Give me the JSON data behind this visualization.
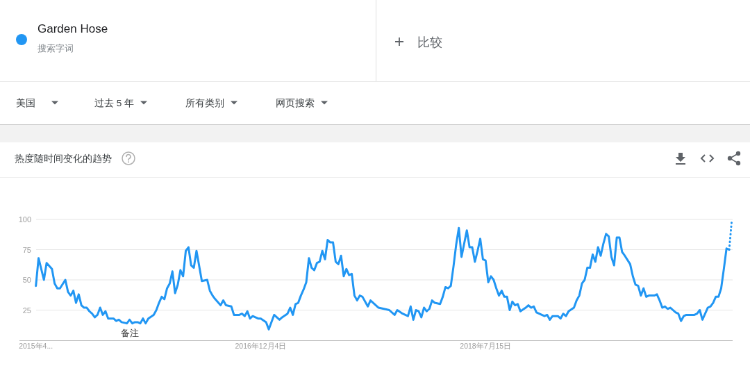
{
  "chart_data": {
    "type": "line",
    "title": "热度随时间变化的趋势",
    "annotations": [
      "搜索字词",
      "比较",
      "美国",
      "过去 5 年",
      "所有类别",
      "网页搜索",
      "备注"
    ],
    "xlim": [
      "2015-03-14",
      "2020-04-21"
    ],
    "xticks": [
      {
        "value": "2015-04-26",
        "label": "2015年4..."
      },
      {
        "value": "2016-12-04",
        "label": "2016年12月4日"
      },
      {
        "value": "2018-07-15",
        "label": "2018年7月15日"
      }
    ],
    "ylim": [
      0,
      100
    ],
    "yticks": [
      25,
      50,
      75,
      100
    ],
    "grid": "y",
    "legend": "top left",
    "series": [
      {
        "name": "Garden Hose",
        "color": "#2196f3",
        "x": [
          "2015-04-26",
          "2015-05-03",
          "2015-05-17",
          "2015-05-24",
          "2015-06-07",
          "2015-06-14",
          "2015-06-21",
          "2015-06-28",
          "2015-07-12",
          "2015-07-19",
          "2015-07-26",
          "2015-08-02",
          "2015-08-09",
          "2015-08-16",
          "2015-08-23",
          "2015-08-30",
          "2015-09-06",
          "2015-09-13",
          "2015-09-20",
          "2015-09-27",
          "2015-10-04",
          "2015-10-11",
          "2015-10-18",
          "2015-10-25",
          "2015-11-01",
          "2015-11-15",
          "2015-11-22",
          "2015-11-29",
          "2015-12-06",
          "2015-12-20",
          "2015-12-27",
          "2016-01-03",
          "2016-01-10",
          "2016-01-17",
          "2016-01-24",
          "2016-01-31",
          "2016-02-07",
          "2016-02-14",
          "2016-02-28",
          "2016-03-06",
          "2016-03-13",
          "2016-03-20",
          "2016-03-27",
          "2016-04-03",
          "2016-04-10",
          "2016-04-17",
          "2016-04-24",
          "2016-05-01",
          "2016-05-08",
          "2016-05-15",
          "2016-05-22",
          "2016-05-29",
          "2016-06-05",
          "2016-06-12",
          "2016-06-19",
          "2016-07-03",
          "2016-07-17",
          "2016-07-24",
          "2016-07-31",
          "2016-08-07",
          "2016-08-21",
          "2016-08-28",
          "2016-09-04",
          "2016-09-18",
          "2016-09-25",
          "2016-10-09",
          "2016-10-16",
          "2016-10-23",
          "2016-10-30",
          "2016-11-06",
          "2016-11-13",
          "2016-11-27",
          "2016-12-04",
          "2016-12-18",
          "2016-12-25",
          "2017-01-08",
          "2017-01-22",
          "2017-01-29",
          "2017-02-12",
          "2017-02-19",
          "2017-02-26",
          "2017-03-05",
          "2017-03-12",
          "2017-03-19",
          "2017-03-26",
          "2017-04-02",
          "2017-04-09",
          "2017-04-16",
          "2017-04-23",
          "2017-04-30",
          "2017-05-07",
          "2017-05-14",
          "2017-05-21",
          "2017-05-28",
          "2017-06-04",
          "2017-06-11",
          "2017-06-18",
          "2017-06-25",
          "2017-07-02",
          "2017-07-09",
          "2017-07-16",
          "2017-07-23",
          "2017-07-30",
          "2017-08-06",
          "2017-08-13",
          "2017-08-20",
          "2017-08-27",
          "2017-09-10",
          "2017-09-17",
          "2017-10-01",
          "2017-10-08",
          "2017-10-22",
          "2017-11-05",
          "2017-11-19",
          "2017-11-26",
          "2017-12-10",
          "2017-12-24",
          "2017-12-31",
          "2018-01-07",
          "2018-01-14",
          "2018-01-21",
          "2018-01-28",
          "2018-02-04",
          "2018-02-11",
          "2018-02-18",
          "2018-02-25",
          "2018-03-04",
          "2018-03-18",
          "2018-03-25",
          "2018-04-01",
          "2018-04-08",
          "2018-04-15",
          "2018-04-22",
          "2018-04-29",
          "2018-05-06",
          "2018-05-13",
          "2018-05-20",
          "2018-05-27",
          "2018-06-03",
          "2018-06-10",
          "2018-06-17",
          "2018-06-24",
          "2018-07-01",
          "2018-07-08",
          "2018-07-15",
          "2018-07-22",
          "2018-07-29",
          "2018-08-05",
          "2018-08-12",
          "2018-08-19",
          "2018-08-26",
          "2018-09-02",
          "2018-09-09",
          "2018-09-16",
          "2018-09-23",
          "2018-09-30",
          "2018-10-07",
          "2018-10-14",
          "2018-10-28",
          "2018-11-04",
          "2018-11-11",
          "2018-11-18",
          "2018-11-25",
          "2018-12-02",
          "2018-12-16",
          "2018-12-23",
          "2018-12-30",
          "2019-01-06",
          "2019-01-13",
          "2019-01-20",
          "2019-01-27",
          "2019-02-03",
          "2019-02-10",
          "2019-02-17",
          "2019-03-03",
          "2019-03-10",
          "2019-03-17",
          "2019-03-24",
          "2019-03-31",
          "2019-04-07",
          "2019-04-14",
          "2019-04-21",
          "2019-04-28",
          "2019-05-05",
          "2019-05-12",
          "2019-05-19",
          "2019-05-26",
          "2019-06-02",
          "2019-06-09",
          "2019-06-16",
          "2019-06-23",
          "2019-06-30",
          "2019-07-07",
          "2019-07-14",
          "2019-07-28",
          "2019-08-04",
          "2019-08-11",
          "2019-08-18",
          "2019-08-25",
          "2019-09-01",
          "2019-09-08",
          "2019-09-15",
          "2019-09-29",
          "2019-10-06",
          "2019-10-13",
          "2019-10-20",
          "2019-10-27",
          "2019-11-03",
          "2019-11-10",
          "2019-11-17",
          "2019-11-24",
          "2019-12-01",
          "2019-12-08",
          "2019-12-15",
          "2019-12-22",
          "2020-01-05",
          "2020-01-12",
          "2020-01-19",
          "2020-01-26",
          "2020-02-02",
          "2020-02-16",
          "2020-02-23",
          "2020-03-01",
          "2020-03-08",
          "2020-03-15",
          "2020-03-22",
          "2020-03-29",
          "2020-04-05",
          "2020-04-12"
        ],
        "values": [
          45,
          68,
          50,
          64,
          59,
          47,
          43,
          43,
          50,
          40,
          37,
          41,
          31,
          38,
          29,
          27,
          27,
          24,
          22,
          19,
          21,
          27,
          21,
          24,
          18,
          18,
          16,
          17,
          15,
          14,
          17,
          14,
          15,
          15,
          14,
          18,
          14,
          18,
          21,
          25,
          31,
          36,
          34,
          43,
          47,
          57,
          39,
          46,
          58,
          53,
          74,
          77,
          62,
          60,
          74,
          49,
          50,
          41,
          37,
          34,
          29,
          33,
          29,
          28,
          21,
          21,
          22,
          20,
          24,
          18,
          20,
          18,
          18,
          15,
          9,
          21,
          17,
          19,
          22,
          27,
          21,
          30,
          31,
          37,
          42,
          48,
          68,
          60,
          58,
          64,
          65,
          74,
          67,
          83,
          81,
          81,
          65,
          63,
          70,
          53,
          59,
          54,
          55,
          37,
          33,
          37,
          36,
          28,
          33,
          29,
          27,
          26,
          25,
          21,
          25,
          22,
          20,
          28,
          17,
          25,
          24,
          19,
          27,
          24,
          26,
          33,
          31,
          30,
          36,
          44,
          43,
          45,
          61,
          79,
          93,
          69,
          80,
          91,
          77,
          77,
          65,
          74,
          84,
          67,
          66,
          48,
          53,
          50,
          43,
          37,
          41,
          36,
          36,
          25,
          32,
          29,
          30,
          24,
          27,
          29,
          27,
          28,
          23,
          22,
          20,
          21,
          17,
          20,
          20,
          20,
          18,
          22,
          20,
          24,
          27,
          33,
          37,
          47,
          50,
          60,
          60,
          71,
          65,
          77,
          70,
          80,
          88,
          86,
          69,
          62,
          85,
          85,
          73,
          70,
          63,
          53,
          46,
          45,
          37,
          43,
          36,
          37,
          37,
          38,
          33,
          27,
          28,
          26,
          27,
          25,
          23,
          22,
          16,
          20,
          21,
          21,
          21,
          22,
          25,
          17,
          27,
          28,
          31,
          36,
          36,
          43,
          59,
          76,
          75
        ]
      },
      {
        "color": "#2196f3",
        "line_style": "dotted",
        "x": [
          "2020-04-12",
          "2020-04-19"
        ],
        "values": [
          75,
          100
        ]
      }
    ]
  }
}
